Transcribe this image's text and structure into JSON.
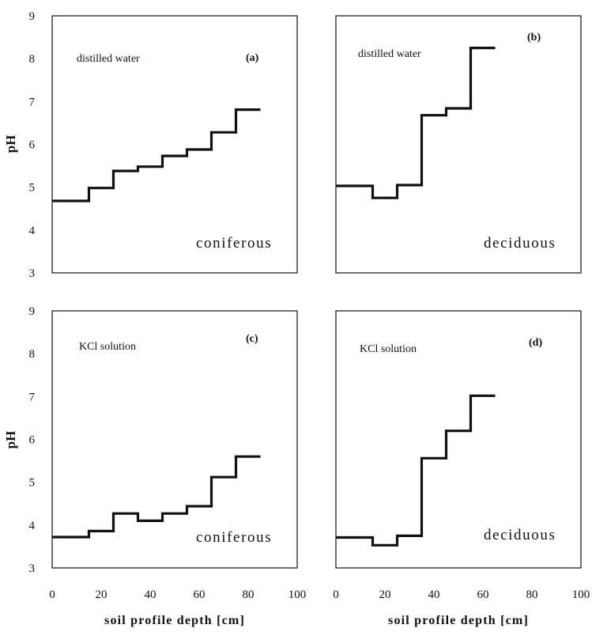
{
  "chart_data": [
    {
      "id": "a",
      "type": "line",
      "step": true,
      "panel_label": "(a)",
      "solution": "distilled water",
      "forest": "coniferous",
      "xlabel": "",
      "ylabel": "pH",
      "xlim": [
        0,
        100
      ],
      "ylim": [
        3,
        9
      ],
      "x_ticks": [],
      "y_ticks": [
        "3",
        "4",
        "5",
        "6",
        "7",
        "8",
        "9"
      ],
      "grid": false,
      "series": [
        {
          "x": [
            0,
            15,
            15,
            25,
            25,
            35,
            35,
            45,
            45,
            55,
            55,
            65,
            65,
            75,
            75,
            85
          ],
          "y": [
            4.68,
            4.68,
            4.98,
            4.98,
            5.38,
            5.38,
            5.48,
            5.48,
            5.73,
            5.73,
            5.88,
            5.88,
            6.28,
            6.28,
            6.81,
            6.81
          ]
        }
      ]
    },
    {
      "id": "b",
      "type": "line",
      "step": true,
      "panel_label": "(b)",
      "solution": "distilled water",
      "forest": "deciduous",
      "xlabel": "",
      "ylabel": "",
      "xlim": [
        0,
        100
      ],
      "ylim": [
        3,
        9
      ],
      "x_ticks": [],
      "y_ticks": [],
      "grid": false,
      "series": [
        {
          "x": [
            0,
            15,
            15,
            25,
            25,
            35,
            35,
            45,
            45,
            55,
            55,
            65
          ],
          "y": [
            5.03,
            5.03,
            4.75,
            4.75,
            5.05,
            5.05,
            6.68,
            6.68,
            6.84,
            6.84,
            8.25,
            8.25
          ]
        }
      ]
    },
    {
      "id": "c",
      "type": "line",
      "step": true,
      "panel_label": "(c)",
      "solution": "KCl solution",
      "forest": "coniferous",
      "xlabel": "soil profile depth [cm]",
      "ylabel": "pH",
      "xlim": [
        0,
        100
      ],
      "ylim": [
        3,
        9
      ],
      "x_ticks": [
        "0",
        "20",
        "40",
        "60",
        "80",
        "100"
      ],
      "y_ticks": [
        "3",
        "4",
        "5",
        "6",
        "7",
        "8",
        "9"
      ],
      "grid": false,
      "series": [
        {
          "x": [
            0,
            15,
            15,
            25,
            25,
            35,
            35,
            45,
            45,
            55,
            55,
            65,
            65,
            75,
            75,
            85
          ],
          "y": [
            3.72,
            3.72,
            3.86,
            3.86,
            4.27,
            4.27,
            4.1,
            4.1,
            4.27,
            4.27,
            4.44,
            4.44,
            5.12,
            5.12,
            5.6,
            5.6
          ]
        }
      ]
    },
    {
      "id": "d",
      "type": "line",
      "step": true,
      "panel_label": "(d)",
      "solution": "KCl solution",
      "forest": "deciduous",
      "xlabel": "soil profile depth [cm]",
      "ylabel": "",
      "xlim": [
        0,
        100
      ],
      "ylim": [
        3,
        9
      ],
      "x_ticks": [
        "0",
        "20",
        "40",
        "60",
        "80",
        "100"
      ],
      "y_ticks": [],
      "grid": false,
      "series": [
        {
          "x": [
            0,
            15,
            15,
            25,
            25,
            35,
            35,
            45,
            45,
            55,
            55,
            65
          ],
          "y": [
            3.71,
            3.71,
            3.53,
            3.53,
            3.75,
            3.75,
            5.56,
            5.56,
            6.2,
            6.2,
            7.02,
            7.02
          ]
        }
      ]
    }
  ],
  "texts": {
    "x_axis_label": "soil profile depth [cm]",
    "y_axis_label": "pH",
    "panel_a": "(a)",
    "panel_b": "(b)",
    "panel_c": "(c)",
    "panel_d": "(d)",
    "solution_a": "distilled water",
    "solution_b": "distilled water",
    "solution_c": "KCl solution",
    "solution_d": "KCl solution",
    "forest_a": "coniferous",
    "forest_b": "deciduous",
    "forest_c": "coniferous",
    "forest_d": "deciduous"
  }
}
